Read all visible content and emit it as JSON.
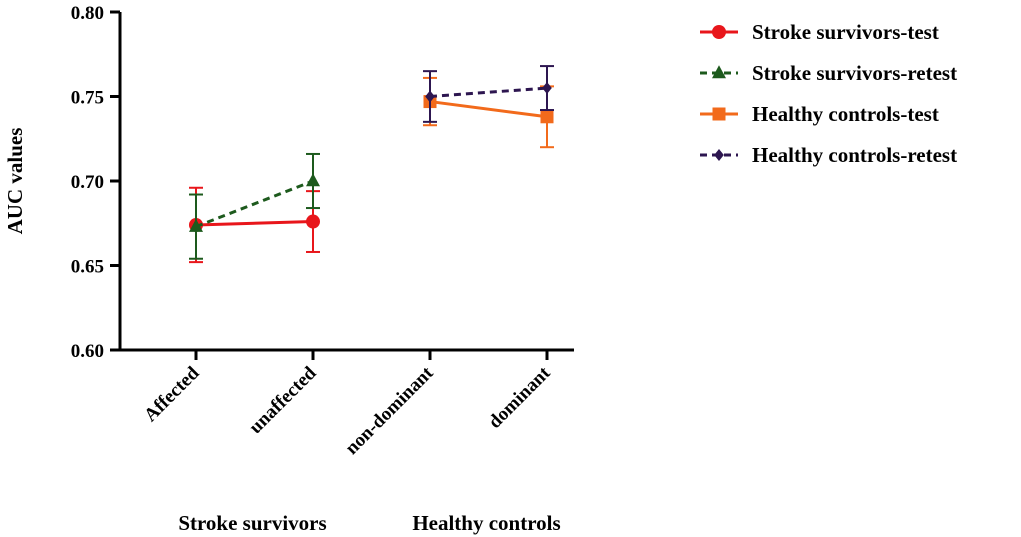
{
  "chart_data": {
    "type": "line",
    "ylabel": "AUC values",
    "ylim": [
      0.6,
      0.8
    ],
    "yticks": [
      "0.60",
      "0.65",
      "0.70",
      "0.75",
      "0.80"
    ],
    "categories": [
      "Affected",
      "unaffected",
      "non-dominant",
      "dominant"
    ],
    "groups": [
      {
        "label": "Stroke survivors",
        "categories": [
          0,
          1
        ]
      },
      {
        "label": "Healthy controls",
        "categories": [
          2,
          3
        ]
      }
    ],
    "legend_position": "top-right",
    "series": [
      {
        "name": "Stroke survivors-test",
        "color": "#e8161b",
        "marker": "circle",
        "dash": "solid",
        "points": [
          {
            "cat": 0,
            "value": 0.674,
            "err_low": 0.652,
            "err_high": 0.696
          },
          {
            "cat": 1,
            "value": 0.676,
            "err_low": 0.658,
            "err_high": 0.694
          }
        ]
      },
      {
        "name": "Stroke survivors-retest",
        "color": "#1d5a1d",
        "marker": "triangle",
        "dash": "dashed",
        "points": [
          {
            "cat": 0,
            "value": 0.673,
            "err_low": 0.654,
            "err_high": 0.692
          },
          {
            "cat": 1,
            "value": 0.7,
            "err_low": 0.684,
            "err_high": 0.716
          }
        ]
      },
      {
        "name": "Healthy controls-test",
        "color": "#f26a1b",
        "marker": "square",
        "dash": "solid",
        "points": [
          {
            "cat": 2,
            "value": 0.747,
            "err_low": 0.733,
            "err_high": 0.761
          },
          {
            "cat": 3,
            "value": 0.738,
            "err_low": 0.72,
            "err_high": 0.756
          }
        ]
      },
      {
        "name": "Healthy controls-retest",
        "color": "#2d1650",
        "marker": "diamond",
        "dash": "dashed",
        "points": [
          {
            "cat": 2,
            "value": 0.75,
            "err_low": 0.735,
            "err_high": 0.765
          },
          {
            "cat": 3,
            "value": 0.755,
            "err_low": 0.742,
            "err_high": 0.768
          }
        ]
      }
    ]
  }
}
